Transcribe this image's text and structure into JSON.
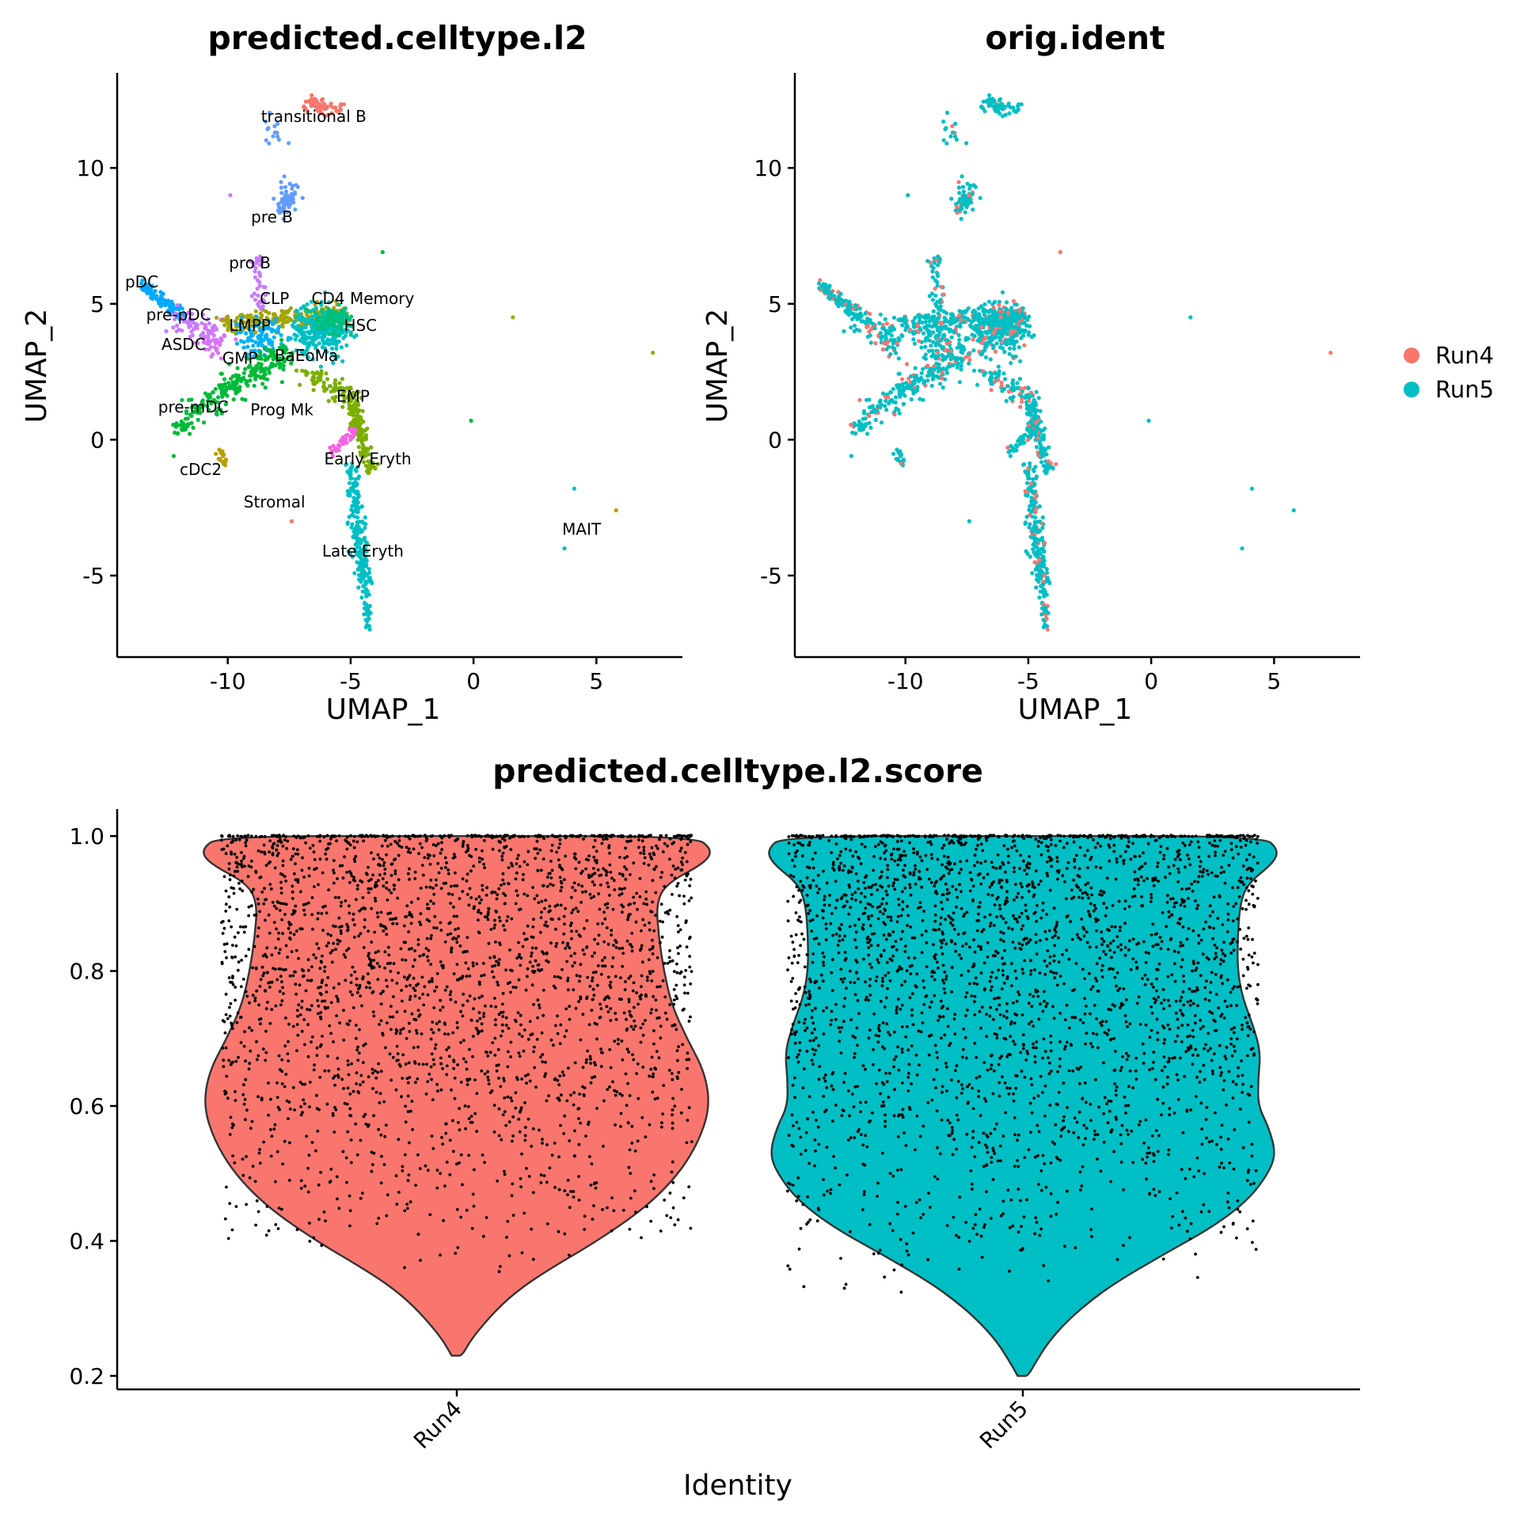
{
  "chart_data": [
    {
      "type": "scatter",
      "title": "predicted.celltype.l2",
      "xlabel": "UMAP_1",
      "ylabel": "UMAP_2",
      "xlim": [
        -14.5,
        8.5
      ],
      "ylim": [
        -8,
        13.5
      ],
      "xticks": [
        -10,
        -5,
        0,
        5
      ],
      "yticks": [
        -5,
        0,
        5,
        10
      ],
      "grid": false,
      "clusters": [
        {
          "label": "transitional B",
          "color": "#F8766D",
          "x": -5.8,
          "y": 11.8,
          "label_x": -6.5,
          "label_y": 11.7
        },
        {
          "label": "pre B",
          "color": "#619CFF",
          "x": -7.6,
          "y": 8.9,
          "label_x": -8.2,
          "label_y": 8.0
        },
        {
          "label": "pro B",
          "color": "#C77CFF",
          "x": -8.8,
          "y": 6.0,
          "label_x": -9.1,
          "label_y": 6.3
        },
        {
          "label": "pDC",
          "color": "#00A9FF",
          "x": -13.2,
          "y": 5.5,
          "label_x": -13.5,
          "label_y": 5.6
        },
        {
          "label": "pre-pDC",
          "color": "#E76BF3",
          "x": -11.8,
          "y": 4.3,
          "label_x": -12.0,
          "label_y": 4.4
        },
        {
          "label": "CLP",
          "color": "#A3A500",
          "x": -8.4,
          "y": 5.0,
          "label_x": -8.1,
          "label_y": 5.0
        },
        {
          "label": "CD4 Memory",
          "color": "#00BF7D",
          "x": -5.9,
          "y": 4.5,
          "label_x": -4.5,
          "label_y": 5.0
        },
        {
          "label": "ASDC",
          "color": "#DB72FB",
          "x": -10.9,
          "y": 3.4,
          "label_x": -11.8,
          "label_y": 3.3
        },
        {
          "label": "LMPP",
          "color": "#00B0F6",
          "x": -9.3,
          "y": 3.9,
          "label_x": -9.1,
          "label_y": 4.0
        },
        {
          "label": "HSC",
          "color": "#00BFC4",
          "x": -6.4,
          "y": 3.8,
          "label_x": -4.6,
          "label_y": 4.0
        },
        {
          "label": "GMP",
          "color": "#00BA38",
          "x": -8.6,
          "y": 2.6,
          "label_x": -9.5,
          "label_y": 2.8
        },
        {
          "label": "BaEoMa",
          "color": "#7CAE00",
          "x": -6.1,
          "y": 2.4,
          "label_x": -6.8,
          "label_y": 2.9
        },
        {
          "label": "EMP",
          "color": "#7CAE00",
          "x": -5.1,
          "y": 1.4,
          "label_x": -4.9,
          "label_y": 1.4
        },
        {
          "label": "pre-mDC",
          "color": "#00BA38",
          "x": -11.2,
          "y": 1.0,
          "label_x": -11.4,
          "label_y": 1.0
        },
        {
          "label": "Prog Mk",
          "color": "#F564E3",
          "x": -5.7,
          "y": 0.5,
          "label_x": -7.8,
          "label_y": 0.9
        },
        {
          "label": "cDC2",
          "color": "#B79F00",
          "x": -10.2,
          "y": -0.8,
          "label_x": -11.1,
          "label_y": -1.3
        },
        {
          "label": "Early Eryth",
          "color": "#7CAE00",
          "x": -4.6,
          "y": -1.2,
          "label_x": -4.3,
          "label_y": -0.9
        },
        {
          "label": "Stromal",
          "color": "#F8766D",
          "x": -7.4,
          "y": -3.0,
          "label_x": -8.1,
          "label_y": -2.5
        },
        {
          "label": "MAIT",
          "color": "#00BFC4",
          "x": 3.7,
          "y": -4.0,
          "label_x": 4.4,
          "label_y": -3.5
        },
        {
          "label": "Late Eryth",
          "color": "#00BFC4",
          "x": -4.6,
          "y": -4.6,
          "label_x": -4.5,
          "label_y": -4.3
        }
      ]
    },
    {
      "type": "scatter",
      "title": "orig.ident",
      "xlabel": "UMAP_1",
      "ylabel": "UMAP_2",
      "xlim": [
        -14.5,
        8.5
      ],
      "ylim": [
        -8,
        13.5
      ],
      "xticks": [
        -10,
        -5,
        0,
        5
      ],
      "yticks": [
        -5,
        0,
        5,
        10
      ],
      "grid": false,
      "legend_position": "right",
      "series": [
        {
          "name": "Run4",
          "color": "#F8766D"
        },
        {
          "name": "Run5",
          "color": "#00BFC4"
        }
      ]
    },
    {
      "type": "violin",
      "title": "predicted.celltype.l2.score",
      "xlabel": "Identity",
      "ylabel": "",
      "ylim": [
        0.18,
        1.04
      ],
      "yticks": [
        0.2,
        0.4,
        0.6,
        0.8,
        1.0
      ],
      "categories": [
        "Run4",
        "Run5"
      ],
      "series": [
        {
          "name": "Run4",
          "color": "#F8766D",
          "min": 0.23,
          "max": 1.0,
          "profile": [
            [
              0.23,
              0.02
            ],
            [
              0.25,
              0.05
            ],
            [
              0.27,
              0.09
            ],
            [
              0.3,
              0.16
            ],
            [
              0.33,
              0.25
            ],
            [
              0.36,
              0.37
            ],
            [
              0.4,
              0.55
            ],
            [
              0.45,
              0.74
            ],
            [
              0.5,
              0.87
            ],
            [
              0.55,
              0.95
            ],
            [
              0.6,
              0.99
            ],
            [
              0.65,
              0.97
            ],
            [
              0.7,
              0.9
            ],
            [
              0.75,
              0.84
            ],
            [
              0.8,
              0.81
            ],
            [
              0.85,
              0.79
            ],
            [
              0.9,
              0.78
            ],
            [
              0.93,
              0.82
            ],
            [
              0.96,
              0.97
            ],
            [
              0.98,
              1.0
            ],
            [
              1.0,
              0.93
            ]
          ]
        },
        {
          "name": "Run5",
          "color": "#00BFC4",
          "min": 0.2,
          "max": 1.0,
          "profile": [
            [
              0.2,
              0.02
            ],
            [
              0.22,
              0.05
            ],
            [
              0.25,
              0.1
            ],
            [
              0.28,
              0.17
            ],
            [
              0.31,
              0.26
            ],
            [
              0.34,
              0.37
            ],
            [
              0.38,
              0.55
            ],
            [
              0.42,
              0.74
            ],
            [
              0.46,
              0.88
            ],
            [
              0.5,
              0.96
            ],
            [
              0.53,
              0.99
            ],
            [
              0.57,
              0.96
            ],
            [
              0.6,
              0.92
            ],
            [
              0.64,
              0.92
            ],
            [
              0.68,
              0.93
            ],
            [
              0.72,
              0.9
            ],
            [
              0.76,
              0.86
            ],
            [
              0.8,
              0.84
            ],
            [
              0.85,
              0.84
            ],
            [
              0.9,
              0.85
            ],
            [
              0.93,
              0.88
            ],
            [
              0.96,
              0.98
            ],
            [
              0.98,
              1.0
            ],
            [
              1.0,
              0.94
            ]
          ]
        }
      ]
    }
  ]
}
